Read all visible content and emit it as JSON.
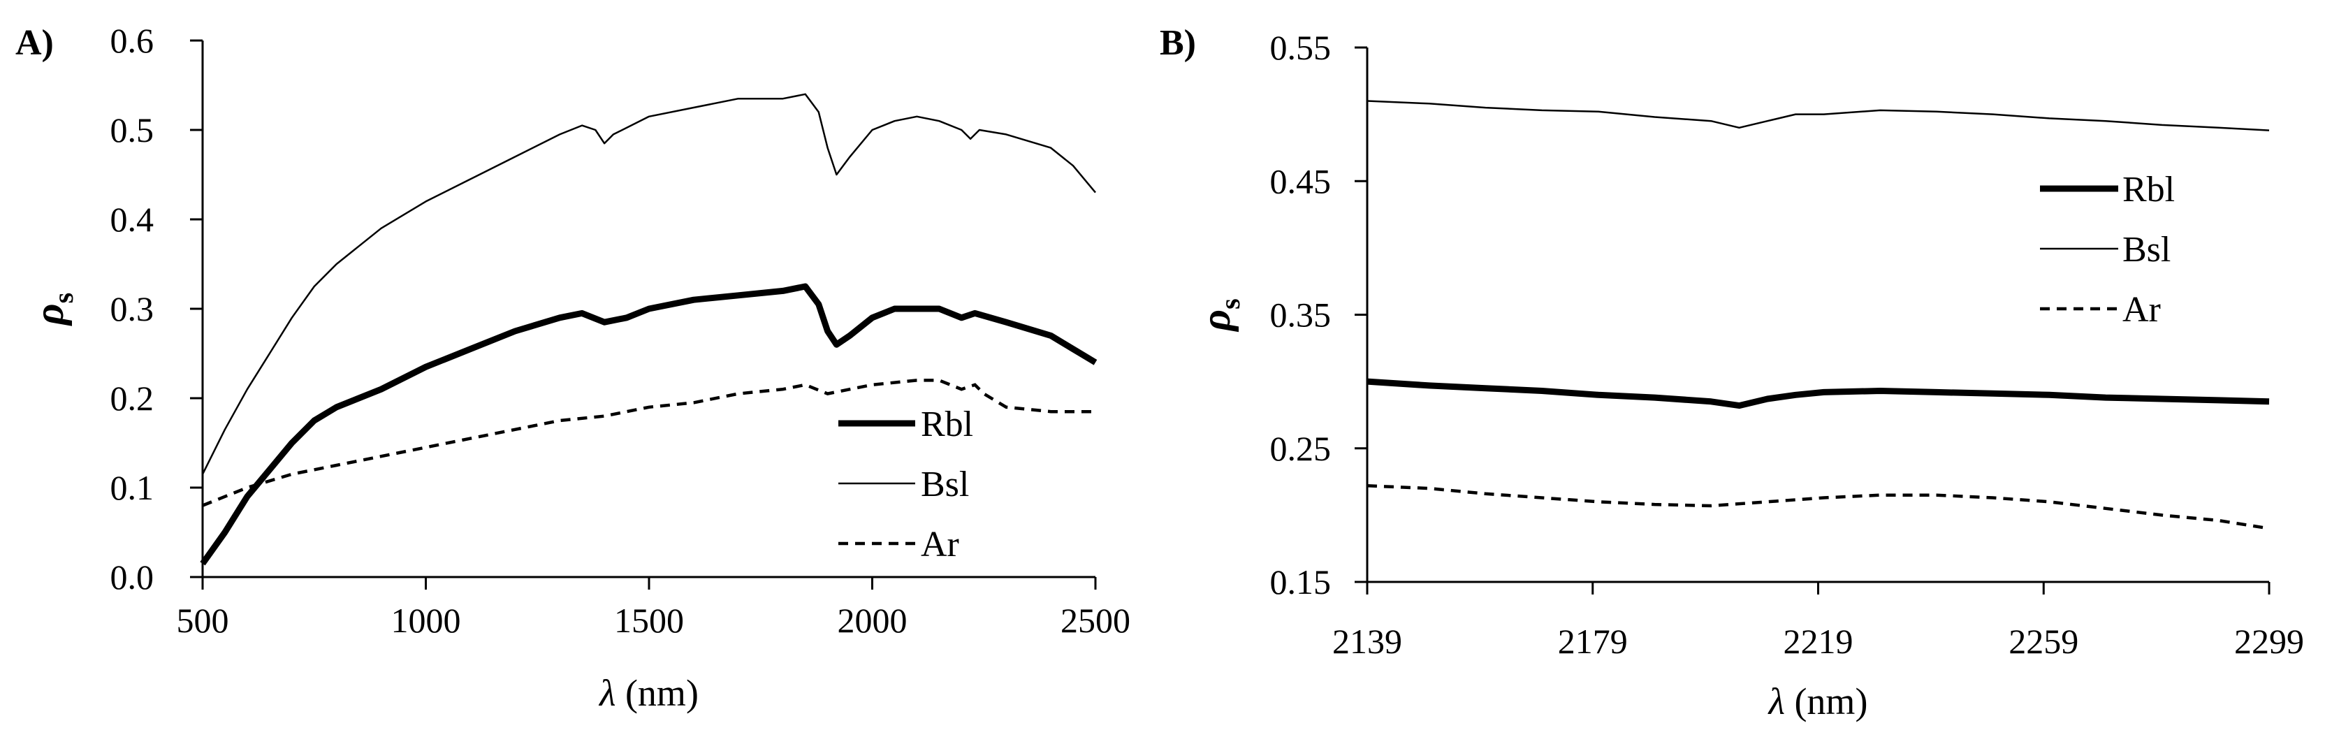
{
  "chart_data": [
    {
      "type": "line",
      "panel_label": "A)",
      "xlabel_symbol": "λ",
      "xlabel_unit": " (nm)",
      "ylabel_symbol": "ρ",
      "ylabel_sub": "s",
      "xlim": [
        500,
        2500
      ],
      "ylim": [
        0.0,
        0.6
      ],
      "xticks": [
        500,
        1000,
        1500,
        2000,
        2500
      ],
      "yticks": [
        0.0,
        0.1,
        0.2,
        0.3,
        0.4,
        0.5,
        0.6
      ],
      "yticks_labels": [
        "0.0",
        "0.1",
        "0.2",
        "0.3",
        "0.4",
        "0.5",
        "0.6"
      ],
      "legend_position": "bottom-right",
      "series": [
        {
          "name": "Rbl",
          "style": "thick",
          "points": [
            [
              500,
              0.015
            ],
            [
              550,
              0.05
            ],
            [
              600,
              0.09
            ],
            [
              650,
              0.12
            ],
            [
              700,
              0.15
            ],
            [
              750,
              0.175
            ],
            [
              800,
              0.19
            ],
            [
              900,
              0.21
            ],
            [
              1000,
              0.235
            ],
            [
              1100,
              0.255
            ],
            [
              1200,
              0.275
            ],
            [
              1300,
              0.29
            ],
            [
              1350,
              0.295
            ],
            [
              1400,
              0.285
            ],
            [
              1450,
              0.29
            ],
            [
              1500,
              0.3
            ],
            [
              1600,
              0.31
            ],
            [
              1700,
              0.315
            ],
            [
              1800,
              0.32
            ],
            [
              1850,
              0.325
            ],
            [
              1880,
              0.305
            ],
            [
              1900,
              0.275
            ],
            [
              1920,
              0.26
            ],
            [
              1950,
              0.27
            ],
            [
              2000,
              0.29
            ],
            [
              2050,
              0.3
            ],
            [
              2100,
              0.3
            ],
            [
              2150,
              0.3
            ],
            [
              2200,
              0.29
            ],
            [
              2230,
              0.295
            ],
            [
              2300,
              0.285
            ],
            [
              2400,
              0.27
            ],
            [
              2450,
              0.255
            ],
            [
              2500,
              0.24
            ]
          ]
        },
        {
          "name": "Bsl",
          "style": "thin",
          "points": [
            [
              500,
              0.115
            ],
            [
              550,
              0.165
            ],
            [
              600,
              0.21
            ],
            [
              650,
              0.25
            ],
            [
              700,
              0.29
            ],
            [
              750,
              0.325
            ],
            [
              800,
              0.35
            ],
            [
              900,
              0.39
            ],
            [
              1000,
              0.42
            ],
            [
              1100,
              0.445
            ],
            [
              1200,
              0.47
            ],
            [
              1300,
              0.495
            ],
            [
              1350,
              0.505
            ],
            [
              1380,
              0.5
            ],
            [
              1400,
              0.485
            ],
            [
              1420,
              0.495
            ],
            [
              1500,
              0.515
            ],
            [
              1600,
              0.525
            ],
            [
              1700,
              0.535
            ],
            [
              1800,
              0.535
            ],
            [
              1850,
              0.54
            ],
            [
              1880,
              0.52
            ],
            [
              1900,
              0.48
            ],
            [
              1920,
              0.45
            ],
            [
              1950,
              0.47
            ],
            [
              2000,
              0.5
            ],
            [
              2050,
              0.51
            ],
            [
              2100,
              0.515
            ],
            [
              2150,
              0.51
            ],
            [
              2200,
              0.5
            ],
            [
              2220,
              0.49
            ],
            [
              2240,
              0.5
            ],
            [
              2300,
              0.495
            ],
            [
              2400,
              0.48
            ],
            [
              2450,
              0.46
            ],
            [
              2500,
              0.43
            ]
          ]
        },
        {
          "name": "Ar",
          "style": "dashed",
          "points": [
            [
              500,
              0.08
            ],
            [
              600,
              0.1
            ],
            [
              700,
              0.115
            ],
            [
              800,
              0.125
            ],
            [
              900,
              0.135
            ],
            [
              1000,
              0.145
            ],
            [
              1100,
              0.155
            ],
            [
              1200,
              0.165
            ],
            [
              1300,
              0.175
            ],
            [
              1400,
              0.18
            ],
            [
              1500,
              0.19
            ],
            [
              1600,
              0.195
            ],
            [
              1700,
              0.205
            ],
            [
              1800,
              0.21
            ],
            [
              1850,
              0.215
            ],
            [
              1900,
              0.205
            ],
            [
              1950,
              0.21
            ],
            [
              2000,
              0.215
            ],
            [
              2100,
              0.22
            ],
            [
              2150,
              0.22
            ],
            [
              2200,
              0.21
            ],
            [
              2230,
              0.215
            ],
            [
              2250,
              0.205
            ],
            [
              2300,
              0.19
            ],
            [
              2400,
              0.185
            ],
            [
              2500,
              0.185
            ]
          ]
        }
      ]
    },
    {
      "type": "line",
      "panel_label": "B)",
      "xlabel_symbol": "λ",
      "xlabel_unit": " (nm)",
      "ylabel_symbol": "ρ",
      "ylabel_sub": "s",
      "xlim": [
        2139,
        2299
      ],
      "ylim": [
        0.15,
        0.55
      ],
      "xticks": [
        2139,
        2179,
        2219,
        2259,
        2299
      ],
      "yticks": [
        0.15,
        0.25,
        0.35,
        0.45,
        0.55
      ],
      "yticks_labels": [
        "0.15",
        "0.25",
        "0.35",
        "0.45",
        "0.55"
      ],
      "legend_position": "top-right",
      "series": [
        {
          "name": "Rbl",
          "style": "thick",
          "points": [
            [
              2139,
              0.3
            ],
            [
              2150,
              0.297
            ],
            [
              2160,
              0.295
            ],
            [
              2170,
              0.293
            ],
            [
              2180,
              0.29
            ],
            [
              2190,
              0.288
            ],
            [
              2200,
              0.285
            ],
            [
              2205,
              0.282
            ],
            [
              2210,
              0.287
            ],
            [
              2215,
              0.29
            ],
            [
              2220,
              0.292
            ],
            [
              2230,
              0.293
            ],
            [
              2240,
              0.292
            ],
            [
              2250,
              0.291
            ],
            [
              2260,
              0.29
            ],
            [
              2270,
              0.288
            ],
            [
              2280,
              0.287
            ],
            [
              2290,
              0.286
            ],
            [
              2299,
              0.285
            ]
          ]
        },
        {
          "name": "Bsl",
          "style": "thin",
          "points": [
            [
              2139,
              0.51
            ],
            [
              2150,
              0.508
            ],
            [
              2160,
              0.505
            ],
            [
              2170,
              0.503
            ],
            [
              2180,
              0.502
            ],
            [
              2190,
              0.498
            ],
            [
              2200,
              0.495
            ],
            [
              2205,
              0.49
            ],
            [
              2210,
              0.495
            ],
            [
              2215,
              0.5
            ],
            [
              2220,
              0.5
            ],
            [
              2230,
              0.503
            ],
            [
              2240,
              0.502
            ],
            [
              2250,
              0.5
            ],
            [
              2260,
              0.497
            ],
            [
              2270,
              0.495
            ],
            [
              2280,
              0.492
            ],
            [
              2290,
              0.49
            ],
            [
              2299,
              0.488
            ]
          ]
        },
        {
          "name": "Ar",
          "style": "dashed",
          "points": [
            [
              2139,
              0.222
            ],
            [
              2150,
              0.22
            ],
            [
              2160,
              0.216
            ],
            [
              2170,
              0.213
            ],
            [
              2180,
              0.21
            ],
            [
              2190,
              0.208
            ],
            [
              2200,
              0.207
            ],
            [
              2210,
              0.21
            ],
            [
              2220,
              0.213
            ],
            [
              2230,
              0.215
            ],
            [
              2240,
              0.215
            ],
            [
              2250,
              0.213
            ],
            [
              2260,
              0.21
            ],
            [
              2270,
              0.205
            ],
            [
              2280,
              0.2
            ],
            [
              2290,
              0.196
            ],
            [
              2299,
              0.19
            ]
          ]
        }
      ]
    }
  ]
}
